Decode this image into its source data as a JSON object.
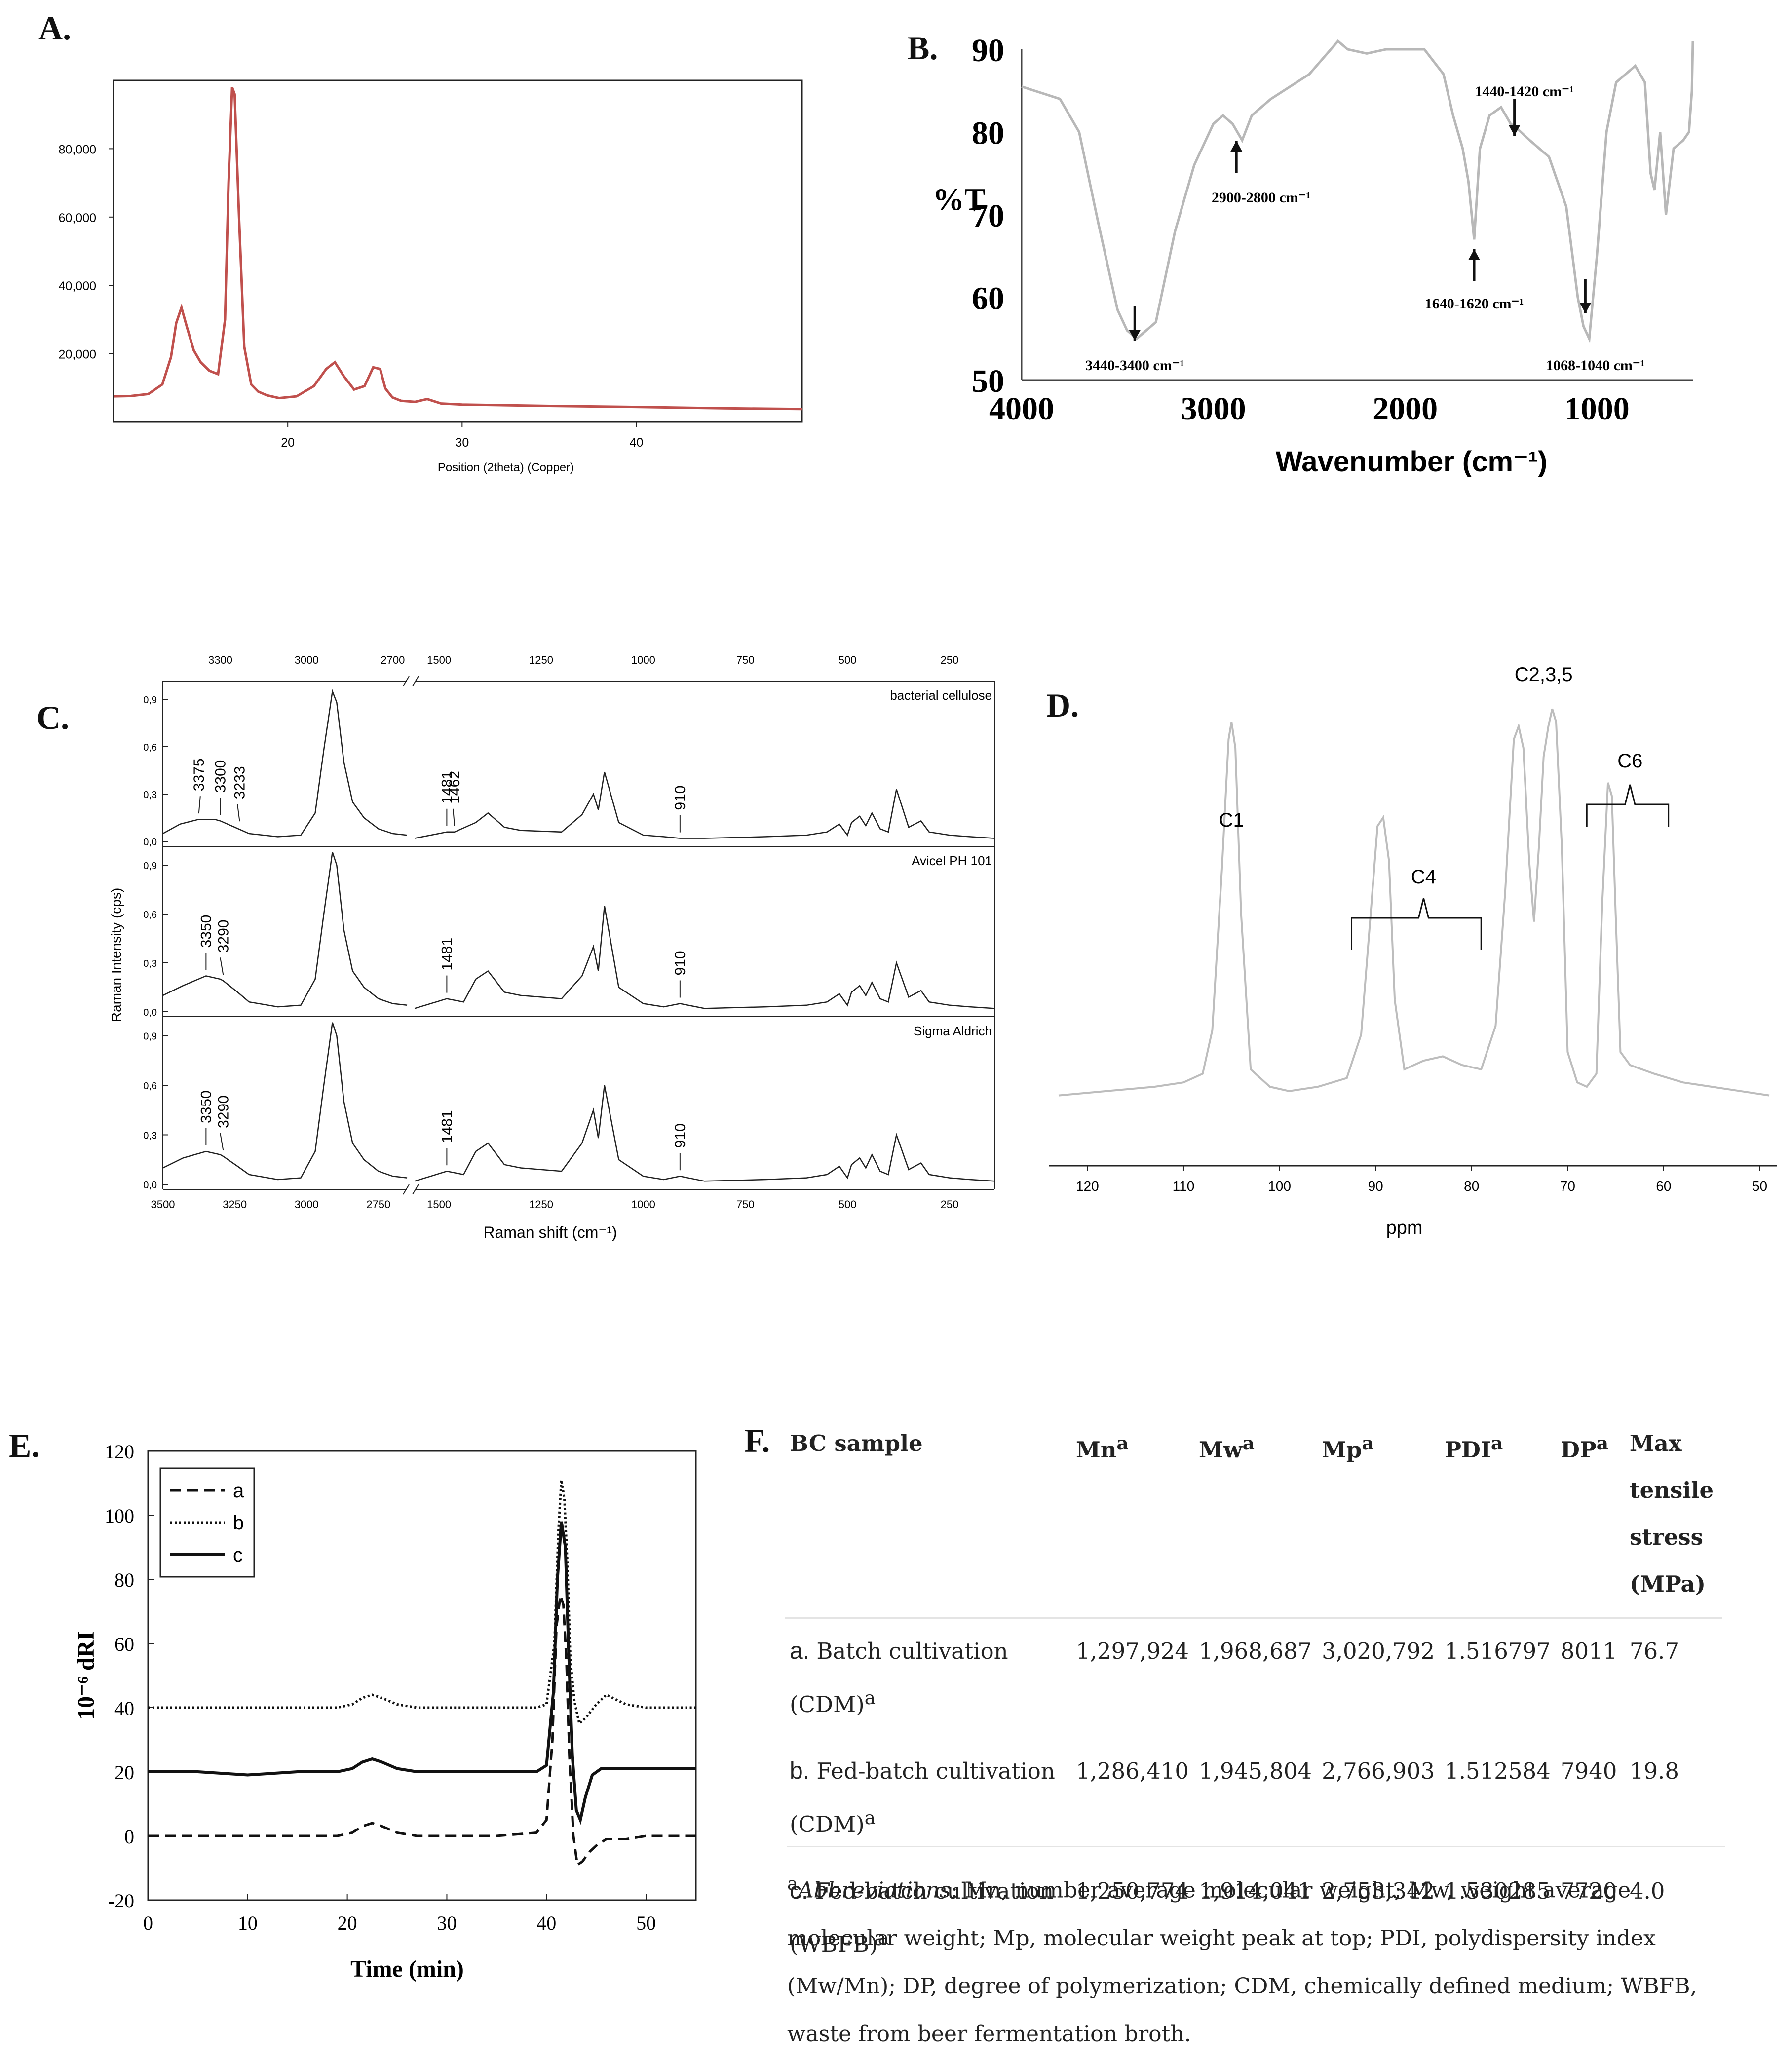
{
  "panel_labels": {
    "a": "A.",
    "b": "B.",
    "c": "C.",
    "d": "D.",
    "e": "E.",
    "f": "F."
  },
  "colors": {
    "xrd": "#c0504d",
    "ftir": "#b8b8b8",
    "nmr": "#bdbdbd",
    "ink": "#111111"
  },
  "chart_data": [
    {
      "id": "A",
      "type": "line",
      "title": "",
      "xlabel": "Position (2theta) (Copper)",
      "ylabel": "",
      "xlim": [
        10,
        49.5
      ],
      "ylim": [
        0,
        100000
      ],
      "yticks": [
        "20,000",
        "40,000",
        "60,000",
        "80,000"
      ],
      "ytick_values": [
        20000,
        40000,
        60000,
        80000
      ],
      "xticks": [
        "20",
        "30",
        "40"
      ],
      "xtick_values": [
        20,
        30,
        40
      ],
      "x": [
        10,
        11,
        12,
        12.8,
        13.3,
        13.6,
        13.9,
        14.2,
        14.6,
        15.0,
        15.5,
        16.0,
        16.4,
        16.6,
        16.8,
        16.95,
        17.2,
        17.5,
        17.9,
        18.3,
        18.8,
        19.5,
        20.5,
        21.5,
        22.2,
        22.7,
        23.2,
        23.8,
        24.4,
        24.9,
        25.3,
        25.6,
        26.0,
        26.5,
        27.3,
        28.0,
        28.8,
        30,
        35,
        40,
        45,
        49.5
      ],
      "y": [
        7500,
        7600,
        8200,
        11000,
        19000,
        29000,
        33500,
        28000,
        21000,
        17500,
        15000,
        14000,
        30000,
        70000,
        98000,
        96000,
        60000,
        22000,
        11000,
        8900,
        7800,
        7000,
        7500,
        10500,
        15500,
        17500,
        13500,
        9500,
        10500,
        16000,
        15500,
        9800,
        7200,
        6200,
        5900,
        6700,
        5400,
        5100,
        4700,
        4400,
        4000,
        3800
      ]
    },
    {
      "id": "B",
      "type": "line",
      "xlabel": "Wavenumber (cm⁻¹)",
      "ylabel": "%T",
      "xlim": [
        4000,
        500
      ],
      "ylim": [
        50,
        90
      ],
      "xticks": [
        "4000",
        "3000",
        "2000",
        "1000"
      ],
      "xtick_values": [
        4000,
        3000,
        2000,
        1000
      ],
      "yticks": [
        "50",
        "60",
        "70",
        "80",
        "90"
      ],
      "ytick_values": [
        50,
        60,
        70,
        80,
        90
      ],
      "annotations": [
        {
          "text": "3440-3400 cm⁻¹",
          "x": 3410,
          "y": 55
        },
        {
          "text": "2900-2800 cm⁻¹",
          "x": 2880,
          "y": 80
        },
        {
          "text": "1640-1620 cm⁻¹",
          "x": 1640,
          "y": 66
        },
        {
          "text": "1440-1420 cm⁻¹",
          "x": 1430,
          "y": 84
        },
        {
          "text": "1068-1040 cm⁻¹",
          "x": 1060,
          "y": 56
        }
      ],
      "x": [
        4000,
        3800,
        3700,
        3600,
        3500,
        3450,
        3400,
        3300,
        3200,
        3100,
        3000,
        2950,
        2900,
        2850,
        2800,
        2700,
        2500,
        2350,
        2300,
        2200,
        2100,
        2000,
        1900,
        1800,
        1750,
        1700,
        1670,
        1640,
        1610,
        1560,
        1500,
        1450,
        1420,
        1350,
        1250,
        1160,
        1100,
        1070,
        1040,
        1000,
        950,
        900,
        800,
        750,
        720,
        700,
        670,
        640,
        600,
        550,
        520,
        505,
        500
      ],
      "y": [
        85.5,
        84,
        80,
        69,
        58.5,
        56,
        55,
        57,
        68,
        76,
        81,
        82,
        81,
        79,
        82,
        84,
        87,
        91,
        90,
        89.5,
        90,
        90,
        90,
        87,
        82,
        78,
        74,
        67,
        78,
        82,
        83,
        81,
        80.5,
        79,
        77,
        71,
        60,
        56.5,
        55,
        65,
        80,
        86,
        88,
        86,
        75,
        73,
        80,
        70,
        78,
        79,
        80,
        85,
        91
      ]
    },
    {
      "id": "C",
      "type": "line",
      "xlabel": "Raman shift (cm⁻¹)",
      "ylabel": "Raman Intensity (cps)",
      "yticks": [
        "0,0",
        "0,3",
        "0,6",
        "0,9"
      ],
      "ytick_values": [
        0,
        0.3,
        0.6,
        0.9
      ],
      "xlim_left": [
        3500,
        2650
      ],
      "xlim_right": [
        1560,
        140
      ],
      "xticks_top_left": [
        "3300",
        "3000",
        "2700"
      ],
      "xticks_top_right": [
        "1500",
        "1250",
        "1000",
        "750",
        "500",
        "250"
      ],
      "xticks_bottom_left": [
        "3500",
        "3250",
        "3000",
        "2750"
      ],
      "xticks_bottom_right": [
        "1500",
        "1250",
        "1000",
        "750",
        "500",
        "250"
      ],
      "series": [
        {
          "name": "bacterial cellulose",
          "peak_labels": [
            "3375",
            "3300",
            "3233",
            "1481",
            "1462",
            "910"
          ],
          "x": [
            3500,
            3440,
            3375,
            3320,
            3300,
            3250,
            3200,
            3100,
            3020,
            2970,
            2940,
            2910,
            2895,
            2870,
            2840,
            2800,
            2750,
            2700,
            2650,
            1560,
            1481,
            1462,
            1410,
            1380,
            1340,
            1300,
            1200,
            1150,
            1122,
            1110,
            1095,
            1060,
            1000,
            950,
            910,
            850,
            700,
            600,
            550,
            520,
            500,
            490,
            470,
            455,
            440,
            420,
            400,
            380,
            350,
            320,
            300,
            250,
            200,
            140
          ],
          "y": [
            0.05,
            0.11,
            0.14,
            0.14,
            0.13,
            0.09,
            0.05,
            0.03,
            0.04,
            0.18,
            0.58,
            0.95,
            0.88,
            0.5,
            0.25,
            0.15,
            0.08,
            0.05,
            0.04,
            0.02,
            0.06,
            0.06,
            0.12,
            0.18,
            0.09,
            0.07,
            0.06,
            0.17,
            0.3,
            0.2,
            0.44,
            0.12,
            0.04,
            0.03,
            0.02,
            0.02,
            0.03,
            0.04,
            0.06,
            0.11,
            0.04,
            0.12,
            0.16,
            0.1,
            0.18,
            0.08,
            0.06,
            0.33,
            0.09,
            0.13,
            0.06,
            0.04,
            0.03,
            0.02
          ]
        },
        {
          "name": "Avicel PH 101",
          "peak_labels": [
            "3350",
            "3290",
            "1481",
            "910"
          ],
          "x": [
            3500,
            3430,
            3350,
            3300,
            3290,
            3240,
            3200,
            3100,
            3020,
            2970,
            2940,
            2910,
            2895,
            2870,
            2840,
            2800,
            2750,
            2700,
            2650,
            1560,
            1481,
            1440,
            1410,
            1380,
            1340,
            1300,
            1200,
            1150,
            1122,
            1110,
            1095,
            1060,
            1000,
            950,
            910,
            850,
            700,
            600,
            550,
            520,
            500,
            490,
            470,
            455,
            440,
            420,
            400,
            380,
            350,
            320,
            300,
            250,
            200,
            140
          ],
          "y": [
            0.1,
            0.16,
            0.22,
            0.2,
            0.19,
            0.12,
            0.06,
            0.03,
            0.04,
            0.2,
            0.6,
            0.98,
            0.9,
            0.5,
            0.25,
            0.15,
            0.08,
            0.05,
            0.04,
            0.02,
            0.08,
            0.06,
            0.2,
            0.25,
            0.12,
            0.1,
            0.08,
            0.22,
            0.4,
            0.25,
            0.65,
            0.15,
            0.05,
            0.03,
            0.05,
            0.02,
            0.03,
            0.04,
            0.06,
            0.11,
            0.04,
            0.12,
            0.16,
            0.1,
            0.18,
            0.08,
            0.06,
            0.3,
            0.09,
            0.13,
            0.06,
            0.04,
            0.03,
            0.02
          ]
        },
        {
          "name": "Sigma Aldrich",
          "peak_labels": [
            "3350",
            "3290",
            "1481",
            "910"
          ],
          "x": [
            3500,
            3430,
            3350,
            3300,
            3290,
            3240,
            3200,
            3100,
            3020,
            2970,
            2940,
            2910,
            2895,
            2870,
            2840,
            2800,
            2750,
            2700,
            2650,
            1560,
            1481,
            1440,
            1410,
            1380,
            1340,
            1300,
            1200,
            1150,
            1122,
            1110,
            1095,
            1060,
            1000,
            950,
            910,
            850,
            700,
            600,
            550,
            520,
            500,
            490,
            470,
            455,
            440,
            420,
            400,
            380,
            350,
            320,
            300,
            250,
            200,
            140
          ],
          "y": [
            0.1,
            0.16,
            0.2,
            0.18,
            0.17,
            0.11,
            0.06,
            0.03,
            0.04,
            0.2,
            0.6,
            0.98,
            0.9,
            0.5,
            0.25,
            0.15,
            0.08,
            0.05,
            0.04,
            0.02,
            0.08,
            0.06,
            0.2,
            0.25,
            0.12,
            0.1,
            0.08,
            0.25,
            0.45,
            0.28,
            0.6,
            0.15,
            0.05,
            0.03,
            0.05,
            0.02,
            0.03,
            0.04,
            0.06,
            0.11,
            0.04,
            0.12,
            0.16,
            0.1,
            0.18,
            0.08,
            0.06,
            0.3,
            0.09,
            0.13,
            0.06,
            0.04,
            0.03,
            0.02
          ]
        }
      ]
    },
    {
      "id": "D",
      "type": "line",
      "xlabel": "ppm",
      "xlim": [
        123,
        49
      ],
      "ylim": [
        0,
        100
      ],
      "xticks": [
        "120",
        "110",
        "100",
        "90",
        "80",
        "70",
        "60",
        "50"
      ],
      "xtick_values": [
        120,
        110,
        100,
        90,
        80,
        70,
        60,
        50
      ],
      "peak_labels": [
        {
          "text": "C1",
          "x": 105
        },
        {
          "text": "C4",
          "x": 85
        },
        {
          "text": "C2,3,5",
          "x": 72.5
        },
        {
          "text": "C6",
          "x": 63.5
        }
      ],
      "x": [
        123,
        118,
        113,
        110,
        108,
        107,
        106,
        105.3,
        105,
        104.6,
        104,
        103,
        101,
        99,
        96,
        93,
        91.5,
        90.5,
        89.8,
        89.2,
        88.6,
        88,
        87,
        85,
        83,
        81,
        79,
        77.5,
        76.5,
        75.6,
        75.1,
        74.6,
        74,
        73.5,
        73,
        72.5,
        72,
        71.6,
        71.2,
        70.6,
        70,
        69,
        68,
        67,
        66.4,
        65.8,
        65.4,
        65,
        64.5,
        63.5,
        61,
        58,
        55,
        52,
        49
      ],
      "y": [
        8,
        9,
        10,
        11,
        13,
        23,
        60,
        90,
        94,
        88,
        50,
        14,
        10,
        9,
        10,
        12,
        22,
        50,
        70,
        72,
        62,
        30,
        14,
        16,
        17,
        15,
        14,
        24,
        55,
        90,
        93,
        88,
        62,
        48,
        65,
        86,
        93,
        97,
        94,
        65,
        18,
        11,
        10,
        13,
        52,
        80,
        77,
        50,
        18,
        15,
        13,
        11,
        10,
        9,
        8
      ]
    },
    {
      "id": "E",
      "type": "line",
      "xlabel": "Time (min)",
      "ylabel": "10⁻⁶ dRI",
      "xlim": [
        0,
        55
      ],
      "ylim": [
        -20,
        120
      ],
      "xticks": [
        "0",
        "10",
        "20",
        "30",
        "40",
        "50"
      ],
      "xtick_values": [
        0,
        10,
        20,
        30,
        40,
        50
      ],
      "yticks": [
        "-20",
        "0",
        "20",
        "40",
        "60",
        "80",
        "100",
        "120"
      ],
      "ytick_values": [
        -20,
        0,
        20,
        40,
        60,
        80,
        100,
        120
      ],
      "legend": [
        "a",
        "b",
        "c"
      ],
      "series": [
        {
          "name": "a",
          "style": "dashed",
          "x": [
            0,
            5,
            10,
            15,
            19,
            20.5,
            21.5,
            22.5,
            23.5,
            25,
            27,
            30,
            35,
            39,
            40,
            40.6,
            41.0,
            41.4,
            41.7,
            42.0,
            42.3,
            42.7,
            43.1,
            43.6,
            44.3,
            45,
            46,
            48,
            50,
            55
          ],
          "x_note": "",
          "y": [
            0,
            0,
            0,
            0,
            0,
            1,
            3,
            4,
            3,
            1,
            0,
            0,
            0,
            1,
            5,
            30,
            65,
            75,
            72,
            55,
            25,
            0,
            -9,
            -8,
            -5,
            -3,
            -1,
            -1,
            0,
            0
          ]
        },
        {
          "name": "b",
          "style": "dotted",
          "x": [
            0,
            5,
            10,
            15,
            19,
            20.5,
            21.5,
            22.5,
            23.5,
            25,
            27,
            30,
            35,
            39,
            40,
            40.8,
            41.2,
            41.5,
            41.8,
            42.1,
            42.4,
            42.8,
            43.3,
            44,
            45,
            46,
            48,
            50,
            55
          ],
          "y": [
            40,
            40,
            40,
            40,
            40,
            41,
            43,
            44,
            43,
            41,
            40,
            40,
            40,
            40,
            41,
            60,
            95,
            111,
            105,
            85,
            55,
            42,
            35,
            37,
            41,
            44,
            41,
            40,
            40
          ]
        },
        {
          "name": "c",
          "style": "solid",
          "x": [
            0,
            5,
            10,
            15,
            19,
            20.5,
            21.5,
            22.5,
            23.5,
            25,
            27,
            30,
            35,
            39,
            40,
            40.7,
            41.1,
            41.5,
            41.9,
            42.2,
            42.6,
            43.0,
            43.4,
            43.9,
            44.6,
            45.5,
            47,
            50,
            55
          ],
          "y": [
            20,
            20,
            19,
            20,
            20,
            21,
            23,
            24,
            23,
            21,
            20,
            20,
            20,
            20,
            22,
            45,
            80,
            98,
            90,
            60,
            25,
            8,
            5,
            12,
            19,
            21,
            21,
            21,
            21
          ]
        }
      ]
    }
  ],
  "table_f": {
    "headers": {
      "sample": "BC sample",
      "mn": "Mn",
      "mw": "Mw",
      "mp": "Mp",
      "pdi": "PDI",
      "dp": "DP",
      "tensile_line1": "Max tensile stress",
      "tensile_line2": "(MPa)",
      "sup": "a"
    },
    "rows": [
      {
        "label": "a.",
        "sample": "Batch cultivation (CDM)",
        "sup": "a",
        "mn": "1,297,924",
        "mw": "1,968,687",
        "mp": "3,020,792",
        "pdi": "1.516797",
        "dp": "8011",
        "tensile": "76.7"
      },
      {
        "label": "b.",
        "sample": "Fed-batch cultivation (CDM)",
        "sup": "a",
        "mn": "1,286,410",
        "mw": "1,945,804",
        "mp": "2,766,903",
        "pdi": "1.512584",
        "dp": "7940",
        "tensile": "19.8"
      },
      {
        "label": "c.",
        "sample": "Fed-batch cultivation (WBFB)",
        "sup": "a",
        "mn": "1,250,774",
        "mw": "1,914,041",
        "mp": "2,753,342",
        "pdi": "1.530285",
        "dp": "7720",
        "tensile": "4.0"
      }
    ],
    "footnote_sup": "a",
    "footnote_title": "Abbreviations",
    "footnote_text": ": Mn, number average molecular weight; Mw, weight average molecular weight; Mp, molecular weight peak at top; PDI, polydispersity index (Mw/Mn); DP, degree of polymerization; CDM, chemically defined medium; WBFB, waste from beer fermentation broth."
  }
}
